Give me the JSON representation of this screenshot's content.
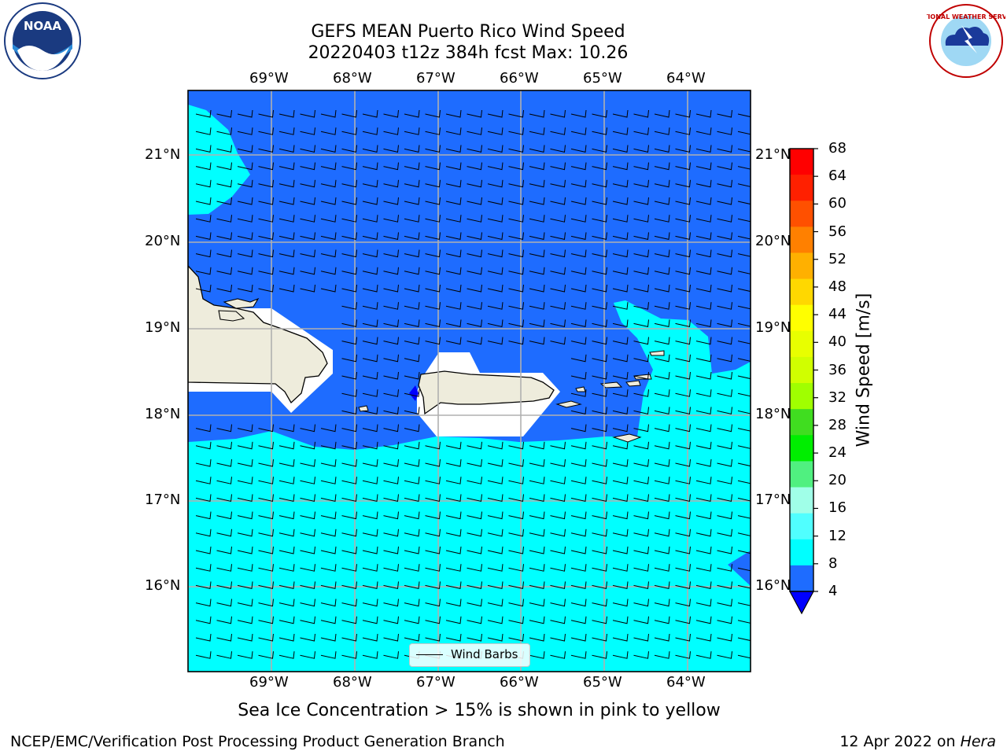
{
  "header": {
    "title_line1": "GEFS MEAN Puerto Rico Wind Speed",
    "title_line2": "20220403 t12z 384h fcst   Max: 10.26"
  },
  "logos": {
    "noaa_text": "NOAA",
    "noaa_ring": "NATIONAL OCEANIC AND ATMOSPHERIC ADMINISTRATION · U.S. DEPARTMENT OF COMMERCE",
    "nws_ring": "NATIONAL WEATHER SERVICE"
  },
  "map": {
    "lon_labels": [
      "69°W",
      "68°W",
      "67°W",
      "66°W",
      "65°W",
      "64°W"
    ],
    "lat_labels": [
      "21°N",
      "20°N",
      "19°N",
      "18°N",
      "17°N",
      "16°N"
    ],
    "legend_label": "Wind Barbs",
    "colors": {
      "land": "#eeecdc",
      "wind_4_8": "#1e6cff",
      "wind_8_12": "#00ffff",
      "grid": "#b0b0b0"
    }
  },
  "colorbar": {
    "title": "Wind Speed [m/s]",
    "tick_labels": [
      "68",
      "64",
      "60",
      "56",
      "52",
      "48",
      "44",
      "40",
      "36",
      "32",
      "28",
      "24",
      "20",
      "16",
      "12",
      "8",
      "4"
    ],
    "bin_colors_top_to_bottom": [
      "#ff0000",
      "#ff2000",
      "#ff5000",
      "#ff8000",
      "#ffb000",
      "#ffd800",
      "#ffff00",
      "#e8ff00",
      "#d0ff00",
      "#a0ff00",
      "#40dd20",
      "#00ee00",
      "#50f080",
      "#a0ffe8",
      "#50ffff",
      "#00ffff",
      "#1e6cff"
    ],
    "extend_color": "#0000ff"
  },
  "footer": {
    "caption": "Sea Ice Concentration > 15% is shown in pink to yellow",
    "left": "NCEP/EMC/Verification Post Processing Product Generation Branch",
    "right_prefix": "12 Apr 2022 on ",
    "right_italic": "Hera"
  }
}
